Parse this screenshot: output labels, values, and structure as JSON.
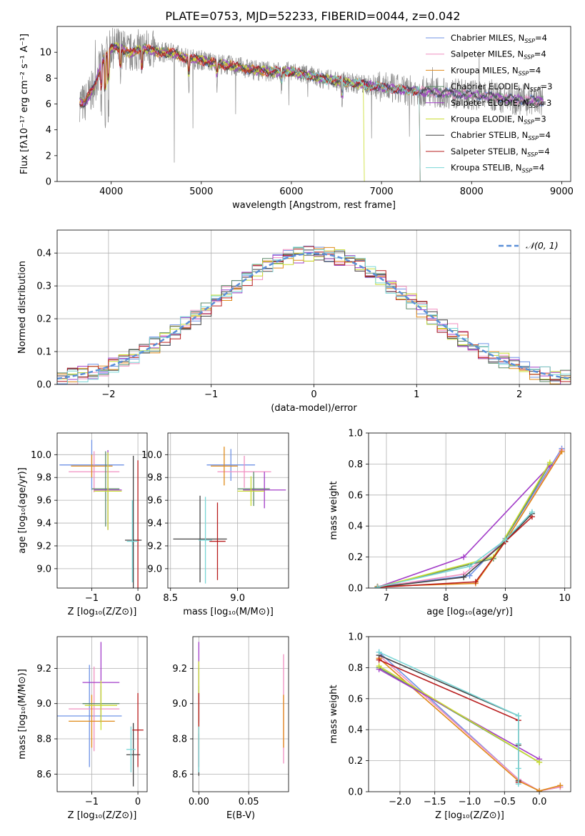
{
  "title": "PLATE=0753, MJD=52233, FIBERID=0044, z=0.042",
  "colors": {
    "Chabrier MILES": "#6f93e6",
    "Salpeter MILES": "#f08fc0",
    "Kroupa MILES": "#e08a18",
    "Chabrier ELODIE": "#5d8a6a",
    "Salpeter ELODIE": "#a23cc8",
    "Kroupa ELODIE": "#c9dd2e",
    "Chabrier STELIB": "#444444",
    "Salpeter STELIB": "#b81d1d",
    "Kroupa STELIB": "#78d6d6",
    "data": "#8c8c8c",
    "norm": "#5b8fd8",
    "grid": "#b0b0b0"
  },
  "chart_data": [
    {
      "id": "spectrum",
      "type": "line",
      "xlabel": "wavelength [Angstrom, rest frame]",
      "ylabel": "Flux [fλ10⁻¹⁷ erg cm⁻² s⁻¹ A⁻¹]",
      "xlim": [
        3400,
        9100
      ],
      "ylim": [
        0,
        12
      ],
      "xticks": [
        4000,
        5000,
        6000,
        7000,
        8000,
        9000
      ],
      "yticks": [
        0,
        2,
        4,
        6,
        8,
        10
      ],
      "grid": false,
      "legend_placement": "top-right",
      "legend": [
        {
          "name": "Chabrier MILES, N",
          "sub": "SSP",
          "suffix": "=4"
        },
        {
          "name": "Salpeter MILES, N",
          "sub": "SSP",
          "suffix": "=4"
        },
        {
          "name": "Kroupa MILES, N",
          "sub": "SSP",
          "suffix": "=4"
        },
        {
          "name": "Chabrier ELODIE, N",
          "sub": "SSP",
          "suffix": "=3"
        },
        {
          "name": "Salpeter ELODIE, N",
          "sub": "SSP",
          "suffix": "=3"
        },
        {
          "name": "Kroupa ELODIE, N",
          "sub": "SSP",
          "suffix": "=3"
        },
        {
          "name": "Chabrier STELIB, N",
          "sub": "SSP",
          "suffix": "=4"
        },
        {
          "name": "Salpeter STELIB, N",
          "sub": "SSP",
          "suffix": "=4"
        },
        {
          "name": "Kroupa STELIB, N",
          "sub": "SSP",
          "suffix": "=4"
        }
      ],
      "continuum": {
        "x": [
          3650,
          3700,
          3800,
          3900,
          4000,
          4100,
          4200,
          4300,
          4400,
          4500,
          4600,
          4700,
          4800,
          4900,
          5000,
          5200,
          5400,
          5600,
          5800,
          6000,
          6200,
          6400,
          6600,
          6800,
          7000,
          7200,
          7400,
          7600,
          7800,
          8000,
          8200,
          8400,
          8600,
          8800
        ],
        "y": [
          6.2,
          6.0,
          7.2,
          9.2,
          10.3,
          10.4,
          9.9,
          10.2,
          10.3,
          10.0,
          10.0,
          9.9,
          9.6,
          9.5,
          9.4,
          9.1,
          8.9,
          8.6,
          8.5,
          8.5,
          8.2,
          7.9,
          7.7,
          7.5,
          7.3,
          7.1,
          7.0,
          6.9,
          6.8,
          6.7,
          6.6,
          6.4,
          6.3,
          6.2
        ]
      },
      "model_cutoffs": {
        "Kroupa STELIB": [
          5760,
          7420
        ],
        "Salpeter STELIB": [
          3650,
          7420
        ],
        "Kroupa MILES": [
          3650,
          7420
        ],
        "Kroupa ELODIE": [
          3900,
          6800
        ]
      }
    },
    {
      "id": "residuals",
      "type": "histogram",
      "xlabel": "(data-model)/error",
      "ylabel": "Normed distribution",
      "xlim": [
        -2.5,
        2.5
      ],
      "ylim": [
        0,
        0.47
      ],
      "xticks": [
        -2,
        -1,
        0,
        1,
        2
      ],
      "xtick_labels": [
        "−2",
        "−1",
        "0",
        "1",
        "2"
      ],
      "yticks": [
        0.0,
        0.1,
        0.2,
        0.3,
        0.4
      ],
      "bin_width": 0.1,
      "grid": true,
      "legend_placement": "top-right",
      "legend": [
        {
          "name": "𝒩(0, 1)",
          "style": "dashed"
        }
      ]
    },
    {
      "id": "age_vs_Z",
      "type": "errorbar",
      "xlabel": "Z [log₁₀(Z/Z⊙)]",
      "ylabel": "age  [log₁₀(age/yr)]",
      "xlim": [
        -1.75,
        0.2
      ],
      "ylim": [
        8.83,
        10.19
      ],
      "xticks": [
        -1,
        0
      ],
      "xtick_labels": [
        "−1",
        "0"
      ],
      "yticks": [
        9.0,
        9.2,
        9.4,
        9.6,
        9.8,
        10.0
      ],
      "grid": true,
      "points": [
        {
          "model": "Chabrier MILES",
          "x": -1.0,
          "xerr": 0.7,
          "y": 9.91,
          "yerr": 0.22
        },
        {
          "model": "Salpeter MILES",
          "x": -0.95,
          "xerr": 0.55,
          "y": 9.85,
          "yerr": 0.18
        },
        {
          "model": "Kroupa MILES",
          "x": -1.0,
          "xerr": 0.45,
          "y": 9.9,
          "yerr": 0.1
        },
        {
          "model": "Chabrier ELODIE",
          "x": -0.7,
          "xerr": 0.3,
          "y": 9.7,
          "yerr": 0.33
        },
        {
          "model": "Salpeter ELODIE",
          "x": -0.65,
          "xerr": 0.3,
          "y": 9.69,
          "yerr": 0.35
        },
        {
          "model": "Kroupa ELODIE",
          "x": -0.65,
          "xerr": 0.3,
          "y": 9.68,
          "yerr": 0.34
        },
        {
          "model": "Chabrier STELIB",
          "x": -0.1,
          "xerr": 0.18,
          "y": 9.25,
          "yerr": 0.74
        },
        {
          "model": "Salpeter STELIB",
          "x": 0.0,
          "xerr": 0.03,
          "y": 9.25,
          "yerr": 0.7
        },
        {
          "model": "Kroupa STELIB",
          "x": -0.12,
          "xerr": 0.12,
          "y": 9.24,
          "yerr": 0.36
        }
      ]
    },
    {
      "id": "age_vs_mass",
      "type": "errorbar",
      "xlabel": "mass [log₁₀(M/M⊙)]",
      "ylabel": "",
      "xlim": [
        8.48,
        9.38
      ],
      "ylim": [
        8.83,
        10.19
      ],
      "xticks": [
        8.5,
        9.0
      ],
      "xtick_labels": [
        "8.5",
        "9.0"
      ],
      "yticks": [
        9.0,
        9.2,
        9.4,
        9.6,
        9.8,
        10.0
      ],
      "grid": true,
      "points": [
        {
          "model": "Chabrier MILES",
          "x": 8.95,
          "xerr": 0.18,
          "y": 9.91,
          "yerr": 0.14
        },
        {
          "model": "Salpeter MILES",
          "x": 9.05,
          "xerr": 0.2,
          "y": 9.85,
          "yerr": 0.14
        },
        {
          "model": "Kroupa MILES",
          "x": 8.9,
          "xerr": 0.1,
          "y": 9.9,
          "yerr": 0.17
        },
        {
          "model": "Chabrier ELODIE",
          "x": 9.12,
          "xerr": 0.12,
          "y": 9.7,
          "yerr": 0.15
        },
        {
          "model": "Salpeter ELODIE",
          "x": 9.2,
          "xerr": 0.16,
          "y": 9.69,
          "yerr": 0.16
        },
        {
          "model": "Kroupa ELODIE",
          "x": 9.1,
          "xerr": 0.1,
          "y": 9.68,
          "yerr": 0.13
        },
        {
          "model": "Chabrier STELIB",
          "x": 8.72,
          "xerr": 0.2,
          "y": 9.26,
          "yerr": 0.38
        },
        {
          "model": "Salpeter STELIB",
          "x": 8.85,
          "xerr": 0.06,
          "y": 9.24,
          "yerr": 0.34
        },
        {
          "model": "Kroupa STELIB",
          "x": 8.76,
          "xerr": 0.05,
          "y": 9.25,
          "yerr": 0.38
        }
      ]
    },
    {
      "id": "mass_weight_vs_age",
      "type": "line",
      "xlabel": "age  [log₁₀(age/yr)]",
      "ylabel": "mass weight",
      "xlim": [
        6.7,
        10.1
      ],
      "ylim": [
        0,
        1
      ],
      "xticks": [
        7,
        8,
        9,
        10
      ],
      "yticks": [
        0.0,
        0.2,
        0.4,
        0.6,
        0.8,
        1.0
      ],
      "grid": true,
      "series": [
        {
          "model": "Chabrier MILES",
          "x": [
            6.85,
            8.4,
            9.0,
            9.95
          ],
          "y": [
            0.01,
            0.08,
            0.32,
            0.9
          ]
        },
        {
          "model": "Salpeter MILES",
          "x": [
            6.85,
            8.3,
            9.0,
            9.95
          ],
          "y": [
            0.005,
            0.09,
            0.3,
            0.89
          ]
        },
        {
          "model": "Kroupa MILES",
          "x": [
            6.85,
            8.5,
            9.0,
            9.95
          ],
          "y": [
            0.01,
            0.03,
            0.3,
            0.88
          ]
        },
        {
          "model": "Chabrier ELODIE",
          "x": [
            6.85,
            8.8,
            9.75
          ],
          "y": [
            0.005,
            0.19,
            0.8
          ]
        },
        {
          "model": "Salpeter ELODIE",
          "x": [
            6.85,
            8.3,
            9.75
          ],
          "y": [
            0.005,
            0.2,
            0.79
          ]
        },
        {
          "model": "Kroupa ELODIE",
          "x": [
            6.85,
            8.8,
            9.75
          ],
          "y": [
            0.005,
            0.2,
            0.81
          ]
        },
        {
          "model": "Chabrier STELIB",
          "x": [
            6.85,
            8.3,
            9.0,
            9.45
          ],
          "y": [
            0.005,
            0.07,
            0.3,
            0.48
          ]
        },
        {
          "model": "Salpeter STELIB",
          "x": [
            6.85,
            8.5,
            9.0,
            9.45
          ],
          "y": [
            0.005,
            0.04,
            0.3,
            0.46
          ]
        },
        {
          "model": "Kroupa STELIB",
          "x": [
            6.85,
            8.4,
            9.0,
            9.45
          ],
          "y": [
            0.005,
            0.14,
            0.31,
            0.49
          ]
        }
      ]
    },
    {
      "id": "mass_vs_Z",
      "type": "errorbar",
      "xlabel": "Z [log₁₀(Z/Z⊙)]",
      "ylabel": "mass [log₁₀(M/M⊙)]",
      "xlim": [
        -1.75,
        0.2
      ],
      "ylim": [
        8.5,
        9.38
      ],
      "xticks": [
        -1,
        0
      ],
      "xtick_labels": [
        "−1",
        "0"
      ],
      "yticks": [
        8.6,
        8.8,
        9.0,
        9.2
      ],
      "grid": true,
      "points": [
        {
          "model": "Chabrier MILES",
          "x": -1.05,
          "xerr": 0.7,
          "y": 8.93,
          "yerr": 0.29
        },
        {
          "model": "Salpeter MILES",
          "x": -0.95,
          "xerr": 0.55,
          "y": 8.97,
          "yerr": 0.24
        },
        {
          "model": "Kroupa MILES",
          "x": -1.0,
          "xerr": 0.5,
          "y": 8.9,
          "yerr": 0.15
        },
        {
          "model": "Chabrier ELODIE",
          "x": -0.8,
          "xerr": 0.4,
          "y": 9.0,
          "yerr": 0.1
        },
        {
          "model": "Salpeter ELODIE",
          "x": -0.8,
          "xerr": 0.4,
          "y": 9.12,
          "yerr": 0.23
        },
        {
          "model": "Kroupa ELODIE",
          "x": -0.8,
          "xerr": 0.35,
          "y": 8.99,
          "yerr": 0.14
        },
        {
          "model": "Chabrier STELIB",
          "x": -0.1,
          "xerr": 0.15,
          "y": 8.71,
          "yerr": 0.18
        },
        {
          "model": "Salpeter STELIB",
          "x": -0.0,
          "xerr": 0.12,
          "y": 8.85,
          "yerr": 0.21
        },
        {
          "model": "Kroupa STELIB",
          "x": -0.15,
          "xerr": 0.1,
          "y": 8.74,
          "yerr": 0.13
        }
      ]
    },
    {
      "id": "mass_vs_ebv",
      "type": "errorbar",
      "xlabel": "E(B-V)",
      "ylabel": "",
      "xlim": [
        -0.006,
        0.09
      ],
      "ylim": [
        8.5,
        9.38
      ],
      "xticks": [
        0.0,
        0.05
      ],
      "xtick_labels": [
        "0.00",
        "0.05"
      ],
      "yticks": [
        8.6,
        8.8,
        9.0,
        9.2
      ],
      "grid": true,
      "points": [
        {
          "model": "Chabrier MILES",
          "x": 0.0,
          "xerr": 0.0,
          "y": 8.93,
          "yerr": 0.29
        },
        {
          "model": "Salpeter MILES",
          "x": 0.085,
          "xerr": 0.0,
          "y": 8.97,
          "yerr": 0.31
        },
        {
          "model": "Kroupa MILES",
          "x": 0.085,
          "xerr": 0.0,
          "y": 8.9,
          "yerr": 0.15
        },
        {
          "model": "Chabrier ELODIE",
          "x": 0.0,
          "xerr": 0.0,
          "y": 9.0,
          "yerr": 0.1
        },
        {
          "model": "Salpeter ELODIE",
          "x": 0.0,
          "xerr": 0.0,
          "y": 9.12,
          "yerr": 0.23
        },
        {
          "model": "Kroupa ELODIE",
          "x": 0.0,
          "xerr": 0.0,
          "y": 8.99,
          "yerr": 0.25
        },
        {
          "model": "Chabrier STELIB",
          "x": 0.0,
          "xerr": 0.0,
          "y": 8.71,
          "yerr": 0.12
        },
        {
          "model": "Salpeter STELIB",
          "x": 0.0,
          "xerr": 0.0,
          "y": 8.85,
          "yerr": 0.21
        },
        {
          "model": "Kroupa STELIB",
          "x": 0.0,
          "xerr": 0.0,
          "y": 8.74,
          "yerr": 0.13
        }
      ]
    },
    {
      "id": "mass_weight_vs_Z",
      "type": "line",
      "xlabel": "Z [log₁₀(Z/Z⊙)]",
      "ylabel": "mass weight",
      "xlim": [
        -2.45,
        0.45
      ],
      "ylim": [
        0,
        1
      ],
      "xticks": [
        -2.0,
        -1.5,
        -1.0,
        -0.5,
        0.0
      ],
      "xtick_labels": [
        "−2.0",
        "−1.5",
        "−1.0",
        "−0.5",
        "0.0"
      ],
      "yticks": [
        0.0,
        0.2,
        0.4,
        0.6,
        0.8,
        1.0
      ],
      "grid": true,
      "series": [
        {
          "model": "Chabrier MILES",
          "x": [
            -2.3,
            -0.3,
            0.0,
            0.3
          ],
          "y": [
            0.9,
            0.08,
            0.005,
            0.03
          ]
        },
        {
          "model": "Salpeter MILES",
          "x": [
            -2.3,
            -0.3,
            0.0,
            0.3
          ],
          "y": [
            0.88,
            0.08,
            0.005,
            0.03
          ]
        },
        {
          "model": "Kroupa MILES",
          "x": [
            -2.3,
            -0.3,
            0.0,
            0.3
          ],
          "y": [
            0.86,
            0.07,
            0.005,
            0.04
          ]
        },
        {
          "model": "Chabrier ELODIE",
          "x": [
            -2.3,
            0.0
          ],
          "y": [
            0.8,
            0.19
          ]
        },
        {
          "model": "Salpeter ELODIE",
          "x": [
            -2.3,
            0.0
          ],
          "y": [
            0.79,
            0.21
          ]
        },
        {
          "model": "Kroupa ELODIE",
          "x": [
            -2.3,
            0.0
          ],
          "y": [
            0.81,
            0.19
          ]
        },
        {
          "model": "Chabrier STELIB",
          "x": [
            -2.3,
            -0.3,
            -0.3,
            -0.3
          ],
          "y": [
            0.88,
            0.49,
            0.3,
            0.07
          ]
        },
        {
          "model": "Salpeter STELIB",
          "x": [
            -2.3,
            -0.3,
            -0.3
          ],
          "y": [
            0.85,
            0.46,
            0.06
          ]
        },
        {
          "model": "Kroupa STELIB",
          "x": [
            -2.3,
            -0.3,
            -0.3,
            -0.3,
            -0.3
          ],
          "y": [
            0.9,
            0.49,
            0.31,
            0.15,
            0.05
          ]
        }
      ]
    }
  ]
}
